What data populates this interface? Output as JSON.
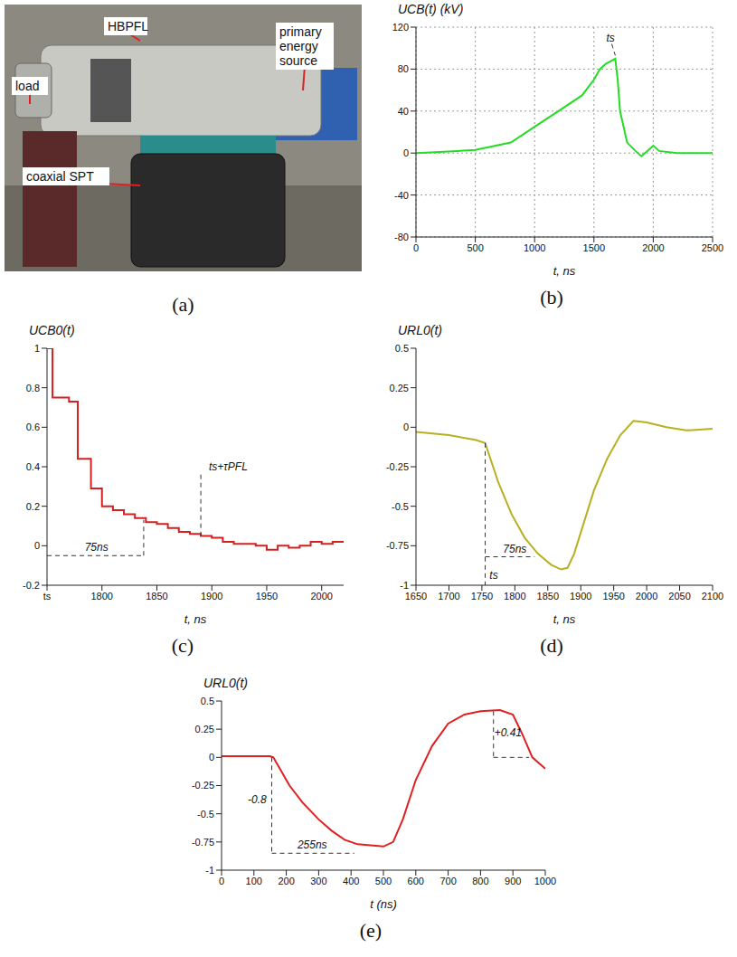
{
  "photo": {
    "caption": "(a)",
    "labels": [
      "HBPFL",
      "load",
      "coaxial SPT",
      "primary energy source"
    ]
  },
  "chart_data": [
    {
      "type": "line",
      "caption": "(b)",
      "ylabel": "UCB(t) (kV)",
      "xlabel": "t, ns",
      "color": "#22dd22",
      "grid": true,
      "x": [
        0,
        200,
        500,
        800,
        1000,
        1200,
        1400,
        1500,
        1550,
        1600,
        1680,
        1700,
        1720,
        1780,
        1850,
        1900,
        1980,
        2000,
        2050,
        2200,
        2500
      ],
      "values": [
        0,
        1,
        3,
        10,
        25,
        40,
        55,
        70,
        80,
        85,
        90,
        70,
        40,
        10,
        2,
        -3,
        5,
        7,
        2,
        0,
        0
      ],
      "xlim": [
        0,
        2500
      ],
      "xticks": [
        0,
        500,
        1000,
        1500,
        2000,
        2500
      ],
      "ylim": [
        -80,
        120
      ],
      "yticks": [
        -80,
        -40,
        0,
        40,
        80,
        120
      ],
      "annotations": [
        {
          "text": "ts",
          "x": 1640,
          "y": 102,
          "segments": [
            [
              [
                1650,
                104
              ],
              [
                1680,
                93
              ]
            ]
          ]
        }
      ]
    },
    {
      "type": "line",
      "caption": "(c)",
      "ylabel": "UCB0(t)",
      "xlabel": "t, ns",
      "color": "#d42020",
      "grid": false,
      "line_style": "step",
      "x": [
        1750,
        1755,
        1770,
        1778,
        1790,
        1800,
        1810,
        1820,
        1830,
        1840,
        1850,
        1860,
        1870,
        1880,
        1890,
        1900,
        1910,
        1920,
        1940,
        1950,
        1960,
        1970,
        1980,
        1990,
        2000,
        2010,
        2020
      ],
      "values": [
        1,
        0.75,
        0.73,
        0.44,
        0.29,
        0.2,
        0.18,
        0.16,
        0.14,
        0.12,
        0.11,
        0.09,
        0.07,
        0.06,
        0.05,
        0.04,
        0.02,
        0.01,
        0,
        -0.02,
        0,
        -0.01,
        0,
        0.02,
        0.01,
        0.02,
        0.02
      ],
      "xlim": [
        1750,
        2020
      ],
      "xticks": [
        {
          "value": 1750,
          "label": "ts"
        },
        1800,
        1850,
        1900,
        1950,
        2000
      ],
      "ylim": [
        -0.2,
        1
      ],
      "yticks": [
        -0.2,
        0,
        0.2,
        0.4,
        0.6,
        0.8,
        1
      ],
      "annotations": [
        {
          "text": "75ns",
          "x": 1795,
          "y": -0.05,
          "segments": [
            [
              [
                1750,
                -0.05
              ],
              [
                1838,
                -0.05
              ]
            ],
            [
              [
                1838,
                -0.05
              ],
              [
                1838,
                0.13
              ]
            ]
          ]
        },
        {
          "text": "ts+τPFL",
          "x": 1915,
          "y": 0.36,
          "segments": [
            [
              [
                1890,
                0.36
              ],
              [
                1890,
                0.05
              ]
            ]
          ]
        }
      ]
    },
    {
      "type": "line",
      "caption": "(d)",
      "ylabel": "URL0(t)",
      "xlabel": "t, ns",
      "color": "#b8b020",
      "grid": false,
      "x": [
        1650,
        1700,
        1740,
        1755,
        1775,
        1795,
        1815,
        1835,
        1855,
        1870,
        1880,
        1890,
        1905,
        1920,
        1940,
        1960,
        1980,
        2000,
        2030,
        2060,
        2100
      ],
      "values": [
        -0.03,
        -0.05,
        -0.08,
        -0.1,
        -0.35,
        -0.55,
        -0.7,
        -0.8,
        -0.87,
        -0.9,
        -0.89,
        -0.8,
        -0.6,
        -0.4,
        -0.2,
        -0.05,
        0.04,
        0.03,
        0,
        -0.02,
        -0.01
      ],
      "xlim": [
        1650,
        2100
      ],
      "xticks": [
        1650,
        1700,
        1750,
        1800,
        1850,
        1900,
        1950,
        2000,
        2050,
        2100
      ],
      "ylim": [
        -1,
        0.5
      ],
      "yticks": [
        -1,
        -0.75,
        -0.5,
        -0.25,
        0,
        0.25,
        0.5
      ],
      "annotations": [
        {
          "text": "ts",
          "x": 1768,
          "y": -0.99,
          "segments": [
            [
              [
                1755,
                -0.1
              ],
              [
                1755,
                -1
              ]
            ]
          ]
        },
        {
          "text": "75ns",
          "x": 1800,
          "y": -0.82,
          "segments": [
            [
              [
                1755,
                -0.82
              ],
              [
                1830,
                -0.82
              ]
            ]
          ]
        }
      ]
    },
    {
      "type": "line",
      "caption": "(e)",
      "ylabel": "URL0(t)",
      "xlabel": "t (ns)",
      "color": "#e02020",
      "grid": false,
      "x": [
        0,
        150,
        160,
        180,
        210,
        250,
        300,
        340,
        380,
        420,
        460,
        500,
        530,
        560,
        600,
        650,
        700,
        750,
        800,
        860,
        900,
        930,
        960,
        1000
      ],
      "values": [
        0.01,
        0.01,
        0,
        -0.1,
        -0.25,
        -0.4,
        -0.55,
        -0.65,
        -0.73,
        -0.77,
        -0.78,
        -0.79,
        -0.75,
        -0.55,
        -0.2,
        0.1,
        0.3,
        0.38,
        0.41,
        0.42,
        0.38,
        0.2,
        0,
        -0.1
      ],
      "xlim": [
        0,
        1000
      ],
      "xticks": [
        0,
        100,
        200,
        300,
        400,
        500,
        600,
        700,
        800,
        900,
        1000
      ],
      "ylim": [
        -1,
        0.5
      ],
      "yticks": [
        -1,
        -0.75,
        -0.5,
        -0.25,
        0,
        0.25,
        0.5
      ],
      "annotations": [
        {
          "text": "-0.8",
          "x": 110,
          "y": -0.45,
          "segments": [
            [
              [
                155,
                0
              ],
              [
                155,
                -0.85
              ]
            ]
          ]
        },
        {
          "text": "255ns",
          "x": 280,
          "y": -0.85,
          "segments": [
            [
              [
                155,
                -0.85
              ],
              [
                410,
                -0.85
              ]
            ]
          ]
        },
        {
          "text": "+0.41",
          "x": 885,
          "y": 0.15,
          "segments": [
            [
              [
                840,
                0.41
              ],
              [
                840,
                0
              ]
            ],
            [
              [
                840,
                0
              ],
              [
                950,
                0
              ]
            ]
          ]
        }
      ]
    }
  ]
}
